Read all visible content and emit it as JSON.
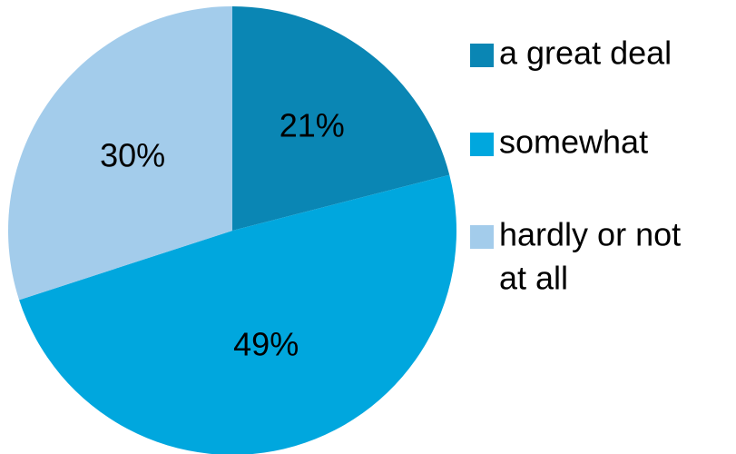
{
  "chart_data": {
    "type": "pie",
    "title": "",
    "start_angle": "12 o'clock, clockwise",
    "slices": [
      {
        "label": "a great deal",
        "value": 21,
        "data_label": "21%",
        "color": "#0A86B4"
      },
      {
        "label": "somewhat",
        "value": 49,
        "data_label": "49%",
        "color": "#00A7DE"
      },
      {
        "label": "hardly or not at all",
        "value": 30,
        "data_label": "30%",
        "color": "#A3CCEB"
      }
    ],
    "legend": {
      "placement": "right",
      "entries": [
        {
          "lines": [
            "a great deal"
          ],
          "color": "#0A86B4"
        },
        {
          "lines": [
            "somewhat"
          ],
          "color": "#00A7DE"
        },
        {
          "lines": [
            "hardly or not",
            "at all"
          ],
          "color": "#A3CCEB"
        }
      ]
    }
  }
}
